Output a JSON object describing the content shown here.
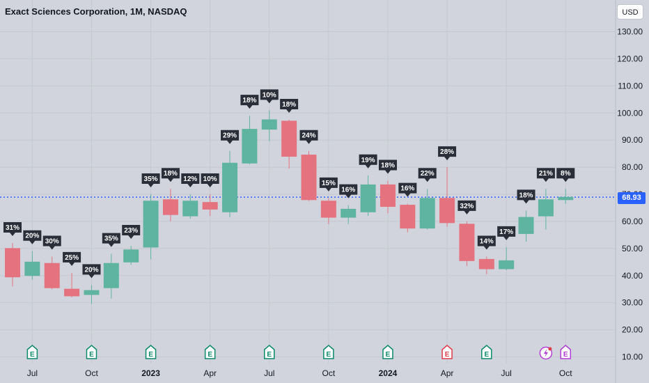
{
  "header": {
    "title": "Exact Sciences Corporation, 1M, NASDAQ",
    "currency": "USD"
  },
  "last_price": "68.93",
  "colors": {
    "up": "#5fb4a1",
    "down": "#e4737f",
    "price_line": "#2962ff",
    "grid": "#c5c8d0",
    "label_bg": "#2a2e39",
    "earnings": "#0a8a6b",
    "earnings_red": "#e03a4a",
    "earnings_purple": "#b33dd6"
  },
  "chart_data": {
    "type": "candlestick",
    "title": "Exact Sciences Corporation, 1M, NASDAQ",
    "ylim": [
      8,
      137
    ],
    "y_ticks": [
      "10.00",
      "20.00",
      "30.00",
      "40.00",
      "50.00",
      "60.00",
      "70.00",
      "80.00",
      "90.00",
      "100.00",
      "110.00",
      "120.00",
      "130.00"
    ],
    "y_tick_values": [
      10,
      20,
      30,
      40,
      50,
      60,
      70,
      80,
      90,
      100,
      110,
      120,
      130
    ],
    "x_labels": [
      {
        "index": 1,
        "text": "Jul",
        "bold": false
      },
      {
        "index": 4,
        "text": "Oct",
        "bold": false
      },
      {
        "index": 7,
        "text": "2023",
        "bold": true
      },
      {
        "index": 10,
        "text": "Apr",
        "bold": false
      },
      {
        "index": 13,
        "text": "Jul",
        "bold": false
      },
      {
        "index": 16,
        "text": "Oct",
        "bold": false
      },
      {
        "index": 19,
        "text": "2024",
        "bold": true
      },
      {
        "index": 22,
        "text": "Apr",
        "bold": false
      },
      {
        "index": 25,
        "text": "Jul",
        "bold": false
      },
      {
        "index": 28,
        "text": "Oct",
        "bold": false
      }
    ],
    "candles": [
      {
        "o": 50,
        "h": 52,
        "l": 36,
        "c": 39.5,
        "label": "31%"
      },
      {
        "o": 40,
        "h": 49,
        "l": 38.5,
        "c": 45,
        "label": "20%"
      },
      {
        "o": 44.5,
        "h": 47,
        "l": 35,
        "c": 35.5,
        "label": "30%"
      },
      {
        "o": 35,
        "h": 41,
        "l": 32,
        "c": 32.5,
        "label": "25%"
      },
      {
        "o": 33,
        "h": 36.5,
        "l": 29.5,
        "c": 34.5,
        "label": "20%"
      },
      {
        "o": 35.5,
        "h": 48,
        "l": 31.5,
        "c": 44.5,
        "label": "35%"
      },
      {
        "o": 45,
        "h": 51,
        "l": 44,
        "c": 49.5,
        "label": "23%"
      },
      {
        "o": 50.5,
        "h": 70,
        "l": 46,
        "c": 67.5,
        "label": "35%"
      },
      {
        "o": 68,
        "h": 72,
        "l": 60,
        "c": 62.5,
        "label": "18%"
      },
      {
        "o": 62,
        "h": 70,
        "l": 61,
        "c": 67.5,
        "label": "12%"
      },
      {
        "o": 67,
        "h": 70,
        "l": 62,
        "c": 64.5,
        "label": "10%"
      },
      {
        "o": 63.5,
        "h": 86,
        "l": 61.5,
        "c": 81.5,
        "label": "29%"
      },
      {
        "o": 81.5,
        "h": 99,
        "l": 81,
        "c": 94,
        "label": "18%"
      },
      {
        "o": 94,
        "h": 101,
        "l": 89.5,
        "c": 97.5,
        "label": "10%"
      },
      {
        "o": 97,
        "h": 97.5,
        "l": 79.5,
        "c": 84,
        "label": "18%"
      },
      {
        "o": 84.5,
        "h": 86,
        "l": 67.5,
        "c": 68,
        "label": "24%"
      },
      {
        "o": 67.5,
        "h": 68.5,
        "l": 59,
        "c": 61.5,
        "label": "15%"
      },
      {
        "o": 61.5,
        "h": 66,
        "l": 59,
        "c": 64.5,
        "label": "16%"
      },
      {
        "o": 63.5,
        "h": 77,
        "l": 62,
        "c": 73.5,
        "label": "19%"
      },
      {
        "o": 73.5,
        "h": 75,
        "l": 63,
        "c": 65.5,
        "label": "18%"
      },
      {
        "o": 66,
        "h": 66.5,
        "l": 56,
        "c": 57.5,
        "label": "16%"
      },
      {
        "o": 57.5,
        "h": 72,
        "l": 57,
        "c": 68.5,
        "label": "22%"
      },
      {
        "o": 68.5,
        "h": 80,
        "l": 58,
        "c": 59.5,
        "label": "28%"
      },
      {
        "o": 59,
        "h": 60,
        "l": 43.5,
        "c": 45.5,
        "label": "32%"
      },
      {
        "o": 46,
        "h": 47,
        "l": 40.5,
        "c": 42.5,
        "label": "14%"
      },
      {
        "o": 42.5,
        "h": 50.5,
        "l": 42,
        "c": 45.5,
        "label": "17%"
      },
      {
        "o": 55.5,
        "h": 64,
        "l": 52.5,
        "c": 61.5,
        "label": "18%"
      },
      {
        "o": 62,
        "h": 72,
        "l": 57,
        "c": 68,
        "label": "21%"
      },
      {
        "o": 68,
        "h": 72,
        "l": 66.5,
        "c": 68.9,
        "label": "8%"
      }
    ],
    "last_price": 68.93,
    "earnings": [
      {
        "index": 1,
        "type": "green"
      },
      {
        "index": 4,
        "type": "green"
      },
      {
        "index": 7,
        "type": "green"
      },
      {
        "index": 10,
        "type": "green"
      },
      {
        "index": 13,
        "type": "green"
      },
      {
        "index": 16,
        "type": "green"
      },
      {
        "index": 19,
        "type": "green"
      },
      {
        "index": 22,
        "type": "red"
      },
      {
        "index": 24,
        "type": "green"
      },
      {
        "index": 27,
        "type": "purple-lightning"
      },
      {
        "index": 28,
        "type": "purple"
      }
    ],
    "earnings_glyph": "E",
    "grid": true
  }
}
